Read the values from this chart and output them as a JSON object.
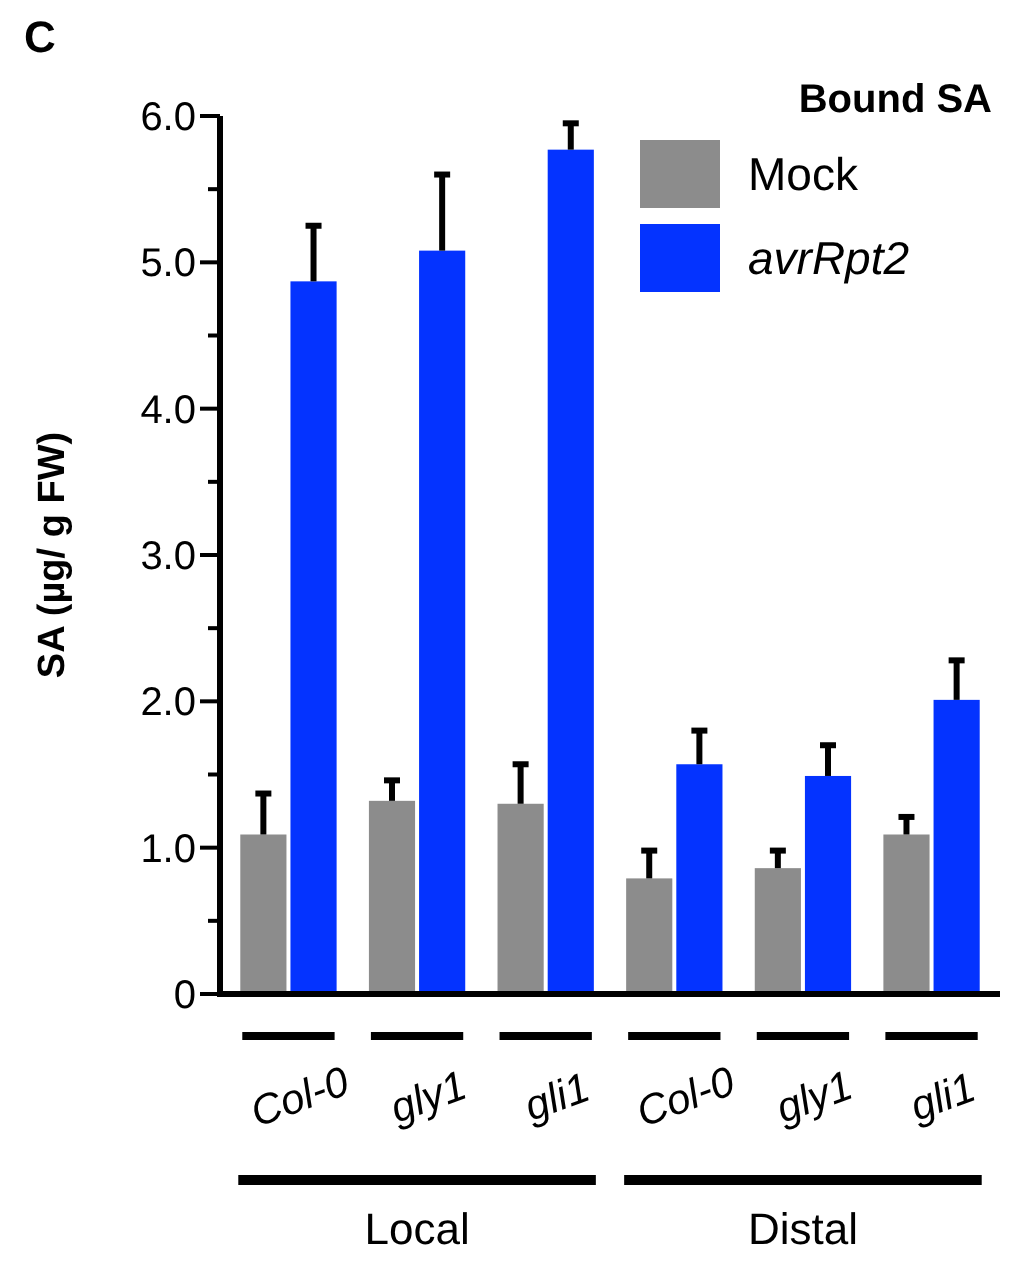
{
  "chart_data": {
    "type": "bar",
    "ylabel": "SA (µg/ g FW)",
    "legend_title": "Bound SA",
    "legend": "top right",
    "categories": [
      "Col-0",
      "gly1",
      "gli1",
      "Col-0",
      "gly1",
      "gli1"
    ],
    "series": [
      {
        "name": "Mock",
        "color": "#8c8c8c",
        "values": [
          1.09,
          1.32,
          1.3,
          0.79,
          0.86,
          1.09
        ],
        "errors": [
          [
            1.09,
            1.37
          ],
          [
            1.32,
            1.46
          ],
          [
            1.3,
            1.57
          ],
          [
            0.79,
            0.98
          ],
          [
            0.86,
            0.98
          ],
          [
            1.09,
            1.21
          ]
        ]
      },
      {
        "name": "avrRpt2",
        "color": "#0433ff",
        "values": [
          4.87,
          5.08,
          5.77,
          1.57,
          1.49,
          2.01
        ],
        "errors": [
          [
            4.87,
            5.25
          ],
          [
            5.08,
            5.6
          ],
          [
            5.77,
            5.95
          ],
          [
            1.57,
            1.8
          ],
          [
            1.49,
            1.7
          ],
          [
            2.01,
            2.28
          ]
        ]
      }
    ],
    "ylim": [
      0,
      6
    ],
    "yticks": [
      0,
      {
        "value": 0.5,
        "label": null
      },
      {
        "value": 1,
        "label": "1.0"
      },
      {
        "value": 1.5,
        "label": null
      },
      {
        "value": 2,
        "label": "2.0"
      },
      {
        "value": 2.5,
        "label": null
      },
      {
        "value": 3,
        "label": "3.0"
      },
      {
        "value": 3.5,
        "label": null
      },
      {
        "value": 4,
        "label": "4.0"
      },
      {
        "value": 4.5,
        "label": null
      },
      {
        "value": 5,
        "label": "5.0"
      },
      {
        "value": 5.5,
        "label": null
      },
      {
        "value": 6,
        "label": "6.0"
      }
    ],
    "grid": false,
    "annotations": [
      "C",
      "Local",
      "Distal"
    ]
  }
}
